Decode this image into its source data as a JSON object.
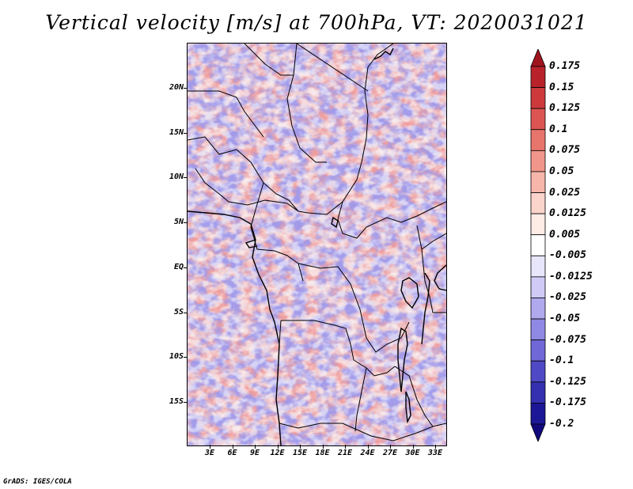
{
  "title": "Vertical velocity [m/s] at 700hPa, VT: 2020031021",
  "credit": "GrADS: IGES/COLA",
  "lat_labels": [
    "20N",
    "15N",
    "10N",
    "5N",
    "EQ",
    "5S",
    "10S",
    "15S"
  ],
  "lon_labels": [
    "3E",
    "6E",
    "9E",
    "12E",
    "15E",
    "18E",
    "21E",
    "24E",
    "27E",
    "30E",
    "33E"
  ],
  "colorbar": {
    "labels": [
      "0.175",
      "0.15",
      "0.125",
      "0.1",
      "0.075",
      "0.05",
      "0.025",
      "0.0125",
      "0.005",
      "-0.005",
      "-0.0125",
      "-0.025",
      "-0.05",
      "-0.075",
      "-0.1",
      "-0.125",
      "-0.175",
      "-0.2"
    ],
    "colors": [
      "#a0141e",
      "#b8232b",
      "#cc3a3c",
      "#dc5552",
      "#e8756c",
      "#f0968a",
      "#f6b6aa",
      "#fad3cb",
      "#fdebe6",
      "#ffffff",
      "#e8e6fb",
      "#cfcaf6",
      "#b0a9ee",
      "#9089e4",
      "#6f68d6",
      "#5049c6",
      "#3430b0",
      "#1c1796",
      "#10087c"
    ]
  }
}
